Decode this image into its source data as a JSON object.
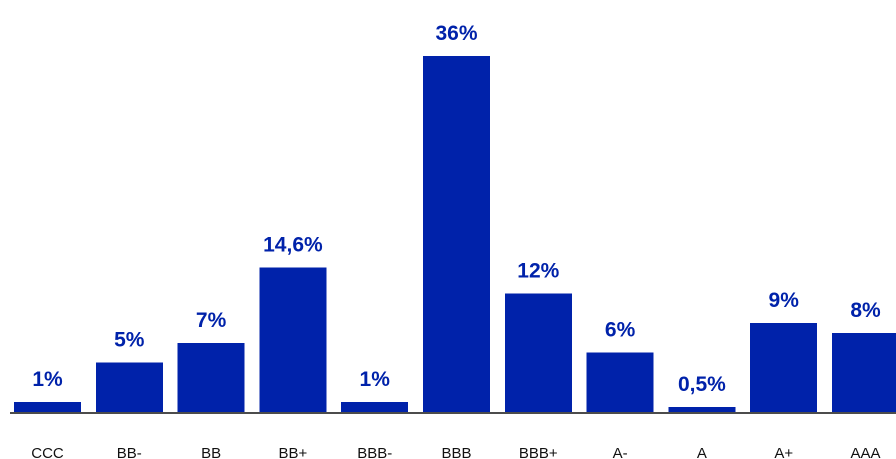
{
  "chart_data": {
    "type": "bar",
    "categories": [
      "CCC",
      "BB-",
      "BB",
      "BB+",
      "BBB-",
      "BBB",
      "BBB+",
      "A-",
      "A",
      "A+",
      "AAA"
    ],
    "values": [
      1,
      5,
      7,
      14.6,
      1,
      36,
      12,
      6,
      0.5,
      9,
      8
    ],
    "value_labels": [
      "1%",
      "5%",
      "7%",
      "14,6%",
      "1%",
      "36%",
      "12%",
      "6%",
      "0,5%",
      "9%",
      "8%"
    ],
    "ylim": [
      0,
      36
    ],
    "grid": false,
    "legend": "none"
  },
  "colors": {
    "bar": "#0022aa",
    "value_label": "#0022aa",
    "axis": "#111111",
    "category_label": "#111111",
    "background": "#ffffff"
  }
}
